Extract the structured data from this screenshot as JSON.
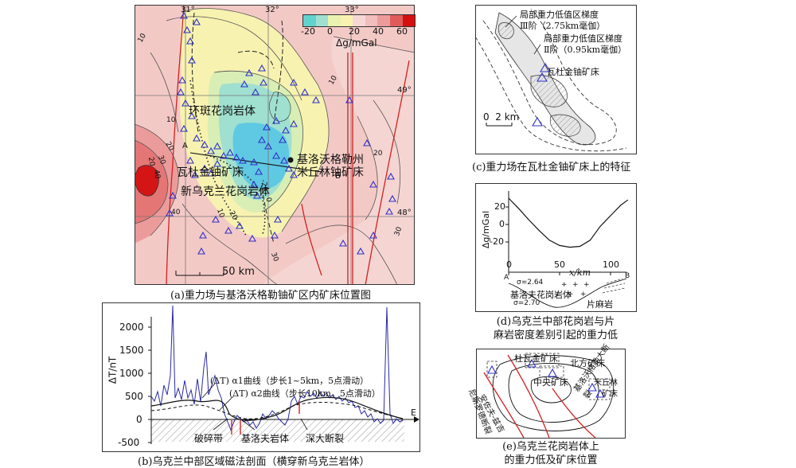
{
  "panel_a": {
    "caption": "(a)重力场与基洛沃格勒铀矿区内矿床位置图",
    "legend_ticks": [
      "-20",
      "0",
      "20",
      "40",
      "60"
    ],
    "legend_colors": [
      "#62d2cf",
      "#9fe0d0",
      "#e9f2b0",
      "#f7f2b0",
      "#f6d7d5",
      "#f2bdbd",
      "#ec9b9b",
      "#e05a5a",
      "#d40f0f"
    ],
    "legend_unit": "Δg/mGal",
    "lon_labels": [
      "31°",
      "32°",
      "33°"
    ],
    "lat_labels": [
      "49°",
      "48°"
    ],
    "contour_labels": [
      "10",
      "10",
      "20",
      "30",
      "20",
      "40",
      "40",
      "-20",
      "0",
      "20",
      "10",
      "20",
      "30",
      "30",
      "10"
    ],
    "profile_ends": [
      "A",
      "B"
    ],
    "labels": {
      "granite1": "环斑花岗岩体",
      "city": "基洛沃格勒州",
      "deposit1": "瓦杜金铀矿床",
      "deposit2": "米丘林铀矿床",
      "granite2": "新乌克兰花岗岩体"
    },
    "scale": "50 km"
  },
  "panel_b": {
    "caption": "(b)乌克兰中部区域磁法剖面（横穿新乌克兰岩体）",
    "y_label": "ΔT/nT",
    "y_ticks": [
      "2000",
      "1500",
      "1000",
      "500",
      "0",
      "-500"
    ],
    "x_axis_end": "E",
    "curve1": "(ΔT) α1曲线（步长1~5km，5点滑动）",
    "curve2": "(ΔT) α2曲线（步长10km，5点滑动）",
    "bottom_labels": [
      "破碎带",
      "基洛夫岩体",
      "深大断裂"
    ]
  },
  "panel_c": {
    "caption": "(c)重力场在瓦杜金铀矿床上的特征",
    "label1_l1": "局部重力低值区梯度",
    "label1_l2": "Ⅲ阶（2.75km毫伽）",
    "label2_l1": "局部重力低值区梯度",
    "label2_l2": "Ⅱ阶（0.95km毫伽）",
    "deposit": "瓦杜金铀矿床",
    "scale": "0  2 km"
  },
  "panel_d": {
    "caption_l1": "(d)乌克兰中部花岗岩与片",
    "caption_l2": "麻岩密度差别引起的重力低",
    "y_label": "Δg/mGal",
    "y_ticks": [
      "20",
      "0",
      "-20"
    ],
    "x_ticks": [
      "0",
      "50",
      "100"
    ],
    "x_label": "x/km",
    "ends": [
      "A",
      "B"
    ],
    "densities": [
      "σ=2.64",
      "σ=2.70"
    ],
    "rock1": "基洛夫花岗岩体",
    "rock2": "片麻岩",
    "profile": {
      "x_km": [
        0,
        10,
        20,
        30,
        40,
        50,
        60,
        70,
        80,
        90,
        100,
        110,
        117
      ],
      "dg_mgal": [
        30,
        18,
        5,
        -7,
        -18,
        -24,
        -26,
        -25,
        -18,
        -2,
        10,
        22,
        28
      ]
    }
  },
  "panel_e": {
    "caption_l1": "(e)乌克兰花岗岩体上",
    "caption_l2": "的重力低及矿床位置",
    "labels": {
      "d1": "杜瓦金矿床",
      "d2": "北方矿床",
      "d3": "中央矿床",
      "d4": "米丘林",
      "d5": "矿床",
      "f1": "安佐夫-兹吉",
      "f2": "尼斯罗德断裂",
      "f3": "基洛沃格勒大断裂"
    }
  }
}
